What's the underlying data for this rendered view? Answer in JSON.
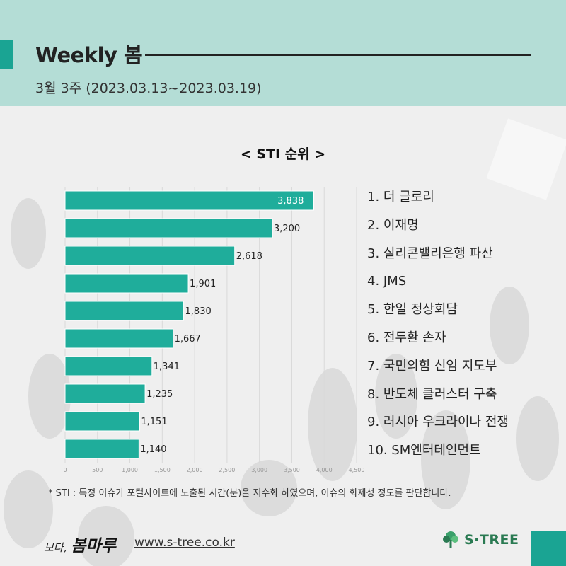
{
  "header": {
    "title": "Weekly 봄",
    "subtitle": "3월 3주 (2023.03.13~2023.03.19)"
  },
  "chart_title": "< STI 순위 >",
  "chart_data": {
    "type": "bar",
    "orientation": "horizontal",
    "categories": [
      "더 글로리",
      "이재명",
      "실리콘밸리은행 파산",
      "JMS",
      "한일 정상회담",
      "전두환 손자",
      "국민의힘 신임 지도부",
      "반도체 클러스터 구축",
      "러시아 우크라이나 전쟁",
      "SM엔터테인먼트"
    ],
    "values": [
      3838,
      3200,
      2618,
      1901,
      1830,
      1667,
      1341,
      1235,
      1151,
      1140
    ],
    "value_labels": [
      "3,838",
      "3,200",
      "2,618",
      "1,901",
      "1,830",
      "1,667",
      "1,341",
      "1,235",
      "1,151",
      "1,140"
    ],
    "xlim": [
      0,
      4500
    ],
    "xticks": [
      0,
      500,
      1000,
      1500,
      2000,
      2500,
      3000,
      3500,
      4000,
      4500
    ],
    "xtick_labels": [
      "0",
      "500",
      "1,000",
      "1,500",
      "2,000",
      "2,500",
      "3,000",
      "3,500",
      "4,000",
      "4,500"
    ],
    "grid": true,
    "bar_color": "#1fad9b"
  },
  "ranking": [
    "1. 더 글로리",
    "2. 이재명",
    "3. 실리콘밸리은행 파산",
    "4. JMS",
    "5. 한일 정상회담",
    "6. 전두환 손자",
    "7. 국민의힘 신임 지도부",
    "8. 반도체 클러스터 구축",
    "9. 러시아 우크라이나 전쟁",
    "10. SM엔터테인먼트"
  ],
  "footnote": "* STI : 특정 이슈가 포털사이트에 노출된 시간(분)을 지수화 하였으며, 이슈의 화제성 정도를 판단합니다.",
  "footer": {
    "brand_small": "보다,",
    "brand_big": "봄마루",
    "url": "www.s-tree.co.kr",
    "logo_text": "S·TREE"
  },
  "colors": {
    "header_bg": "#b4ddd6",
    "accent": "#1aa493",
    "logo_green": "#2a7a52"
  }
}
